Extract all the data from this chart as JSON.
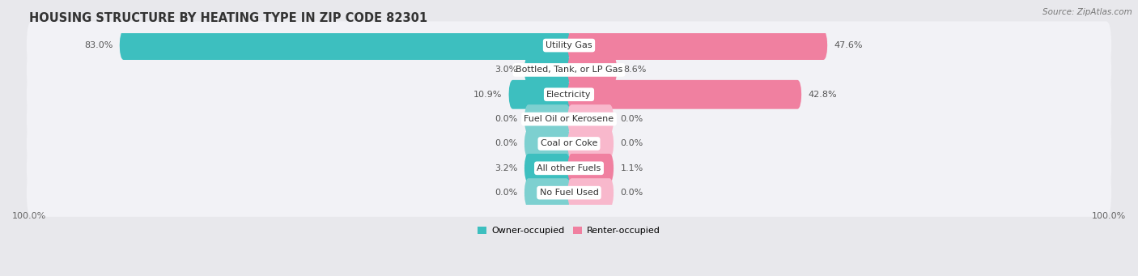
{
  "title": "HOUSING STRUCTURE BY HEATING TYPE IN ZIP CODE 82301",
  "source": "Source: ZipAtlas.com",
  "categories": [
    "Utility Gas",
    "Bottled, Tank, or LP Gas",
    "Electricity",
    "Fuel Oil or Kerosene",
    "Coal or Coke",
    "All other Fuels",
    "No Fuel Used"
  ],
  "owner_values": [
    83.0,
    3.0,
    10.9,
    0.0,
    0.0,
    3.2,
    0.0
  ],
  "renter_values": [
    47.6,
    8.6,
    42.8,
    0.0,
    0.0,
    1.1,
    0.0
  ],
  "owner_color": "#3DBFBF",
  "renter_color": "#F080A0",
  "owner_stub_color": "#7DD0D0",
  "renter_stub_color": "#F8B8CC",
  "bar_height": 0.58,
  "stub_value": 8.0,
  "bg_color": "#E8E8EC",
  "row_bg_color": "#F2F2F6",
  "max_value": 100.0,
  "title_fontsize": 10.5,
  "label_fontsize": 8,
  "axis_label_fontsize": 8,
  "legend_fontsize": 8,
  "source_fontsize": 7.5,
  "x_left_label": "100.0%",
  "x_right_label": "100.0%"
}
